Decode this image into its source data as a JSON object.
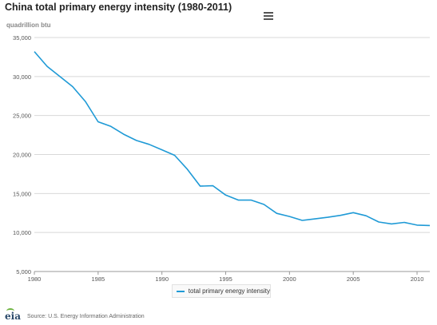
{
  "chart_data": {
    "type": "line",
    "title": "China total primary energy intensity (1980-2011)",
    "ylabel": "quadrillion btu",
    "xlabel": "",
    "x": [
      1980,
      1981,
      1982,
      1983,
      1984,
      1985,
      1986,
      1987,
      1988,
      1989,
      1990,
      1991,
      1992,
      1993,
      1994,
      1995,
      1996,
      1997,
      1998,
      1999,
      2000,
      2001,
      2002,
      2003,
      2004,
      2005,
      2006,
      2007,
      2008,
      2009,
      2010,
      2011
    ],
    "series": [
      {
        "name": "total primary energy intensity",
        "color": "#1f9ad6",
        "values": [
          33200,
          31300,
          30000,
          28700,
          26800,
          24200,
          23600,
          22600,
          21800,
          21300,
          20600,
          19900,
          18100,
          15950,
          16000,
          14800,
          14150,
          14150,
          13600,
          12450,
          12050,
          11550,
          11750,
          11950,
          12200,
          12550,
          12150,
          11350,
          11100,
          11300,
          10950,
          10900
        ]
      }
    ],
    "ylim": [
      5000,
      35000
    ],
    "yticks": [
      5000,
      10000,
      15000,
      20000,
      25000,
      30000,
      35000
    ],
    "ytick_labels": [
      "5,000",
      "10,000",
      "15,000",
      "20,000",
      "25,000",
      "30,000",
      "35,000"
    ],
    "xticks": [
      1980,
      1985,
      1990,
      1995,
      2000,
      2005,
      2010
    ],
    "xtick_labels": [
      "1980",
      "1985",
      "1990",
      "1995",
      "2000",
      "2005",
      "2010"
    ],
    "grid": true,
    "legend": "bottom-center"
  },
  "ui": {
    "menu_icon": "hamburger-menu-icon",
    "source": "Source: U.S. Energy Information Administration",
    "logo_text": "eia",
    "logo_colors": {
      "text": "#2b4a6b",
      "swoosh": "#6db33f"
    }
  }
}
